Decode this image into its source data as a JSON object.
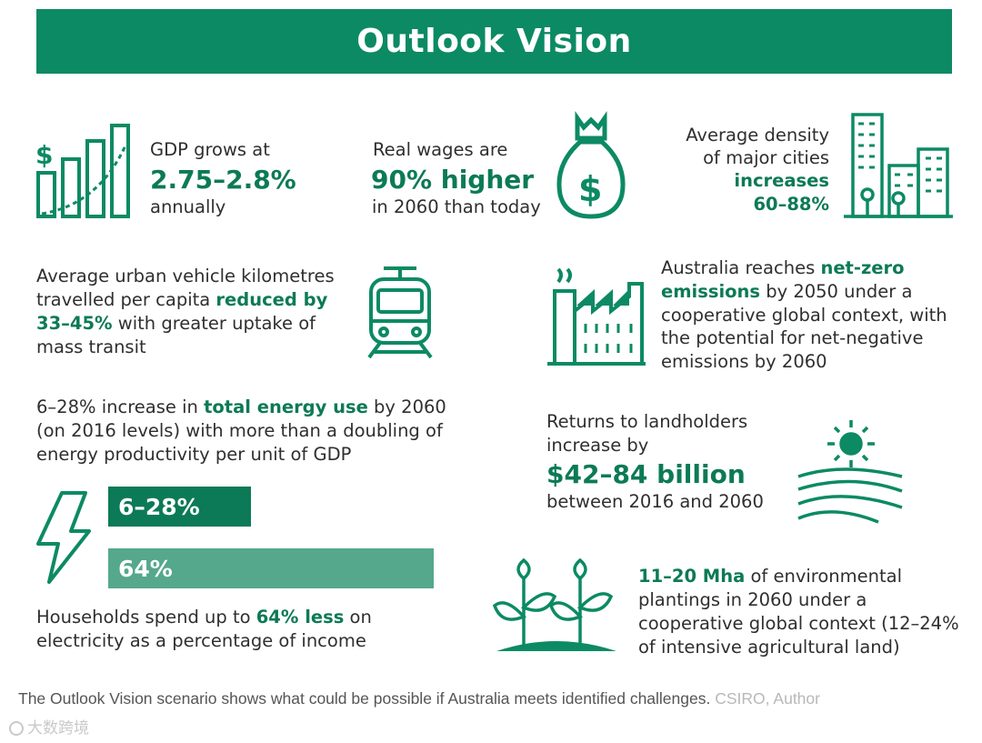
{
  "colors": {
    "primary": "#0c8a63",
    "text": "#2f2f2f",
    "bar_light": "#55a88c"
  },
  "header": {
    "title": "Outlook Vision"
  },
  "gdp": {
    "line1": "GDP grows at",
    "value": "2.75–2.8%",
    "line3": "annually",
    "icon": "gdp-bar-chart-icon"
  },
  "wages": {
    "line1": "Real wages are",
    "value": "90% higher",
    "line3": "in 2060 than today",
    "icon": "money-bag-icon"
  },
  "density": {
    "line1": "Average density",
    "line2": "of major cities",
    "highlight": "increases",
    "value": "60–88%",
    "icon": "city-buildings-icon"
  },
  "vkt": {
    "line1": "Average urban vehicle kilometres",
    "line2a": "travelled per capita ",
    "line2b": "reduced by",
    "line3a": "33–45%",
    "line3b": " with greater uptake of",
    "line4": "mass transit",
    "icon": "train-icon"
  },
  "emissions": {
    "line1a": "Australia reaches ",
    "line1b": "net-zero",
    "line2a": "emissions",
    "line2b": " by 2050 under a",
    "line3": "cooperative global context, with",
    "line4": "the potential for net-negative",
    "line5": "emissions by 2060",
    "icon": "factory-icon"
  },
  "energy": {
    "line1a": "6–28% increase in ",
    "line1b": "total energy use",
    "line1c": " by 2060",
    "line2": "(on 2016 levels) with more than a doubling of",
    "line3": "energy productivity per unit of GDP",
    "bar1_label": "6–28%",
    "bar1_value": 28,
    "bar2_label": "64%",
    "bar2_value": 64,
    "icon": "lightning-bolt-icon"
  },
  "households": {
    "line1a": "Households spend up to ",
    "line1b": "64% less",
    "line1c": " on",
    "line2": "electricity as a percentage of income"
  },
  "landholders": {
    "line1": "Returns to landholders",
    "line2": "increase by",
    "value": "$42–84 billion",
    "line4": "between 2016 and 2060",
    "icon": "sun-fields-icon"
  },
  "plantings": {
    "line1a": "11–20 Mha",
    "line1b": " of environmental",
    "line2": "plantings in 2060 under a",
    "line3": "cooperative global context (12–24%",
    "line4": "of intensive agricultural land)",
    "icon": "seedlings-icon"
  },
  "caption": {
    "text": "The Outlook Vision scenario shows what could be possible if Australia meets identified challenges.",
    "credit": "CSIRO, Author"
  },
  "watermark": {
    "text": "大数跨境"
  }
}
